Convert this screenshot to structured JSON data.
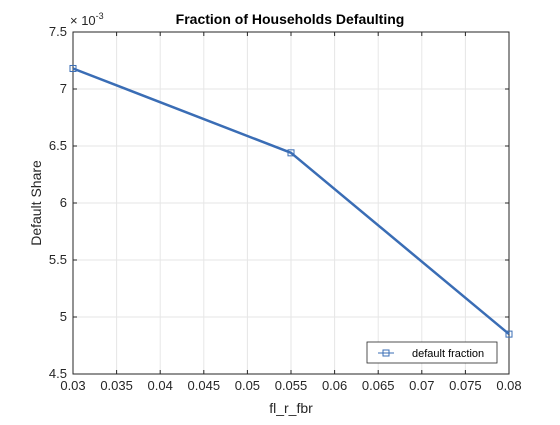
{
  "chart_data": {
    "type": "line",
    "title": "Fraction of Households Defaulting",
    "xlabel": "fl_r_fbr",
    "ylabel": "Default Share",
    "y_exponent_label": "× 10",
    "y_exponent": "-3",
    "xlim": [
      0.03,
      0.08
    ],
    "ylim": [
      4.5,
      7.5
    ],
    "x_ticks": [
      "0.03",
      "0.035",
      "0.04",
      "0.045",
      "0.05",
      "0.055",
      "0.06",
      "0.065",
      "0.07",
      "0.075",
      "0.08"
    ],
    "y_ticks": [
      "4.5",
      "5",
      "5.5",
      "6",
      "6.5",
      "7",
      "7.5"
    ],
    "grid": true,
    "legend_position": "bottom-right",
    "series": [
      {
        "name": "default fraction",
        "marker": "square",
        "color": "#3a6db5",
        "x": [
          0.03,
          0.055,
          0.08
        ],
        "y": [
          7.18,
          6.44,
          4.85
        ]
      }
    ]
  }
}
